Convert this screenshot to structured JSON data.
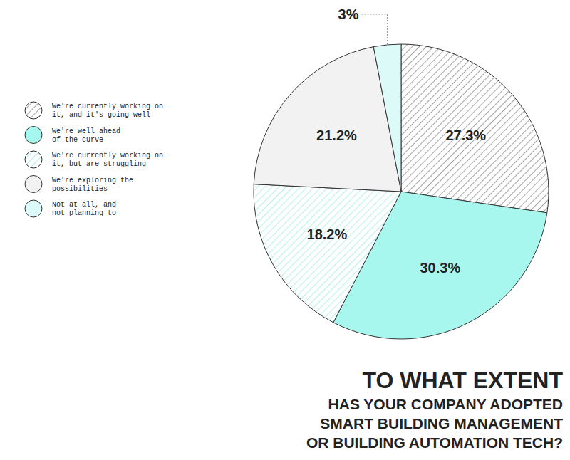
{
  "chart_data": {
    "type": "pie",
    "title": "TO WHAT EXTENT",
    "subtitle": "HAS YOUR COMPANY ADOPTED\nSMART BUILDING MANAGEMENT\nOR BUILDING AUTOMATION TECH?",
    "categories": [
      "We're currently working on\nit, and it's going well",
      "We're well ahead\nof the curve",
      "We're currently working on\nit, but are struggling",
      "We're exploring the\npossibilities",
      "Not at all, and\nnot planning to"
    ],
    "values": [
      27.3,
      30.3,
      18.2,
      21.2,
      3
    ],
    "value_labels": [
      "27.3%",
      "30.3%",
      "18.2%",
      "21.2%",
      "3%"
    ],
    "colors": [
      "#8c8c8c",
      "#a8f7ee",
      "#9eeee6",
      "#f2f2f2",
      "#dcfaf8"
    ],
    "data_labels": true,
    "legend": "left"
  }
}
